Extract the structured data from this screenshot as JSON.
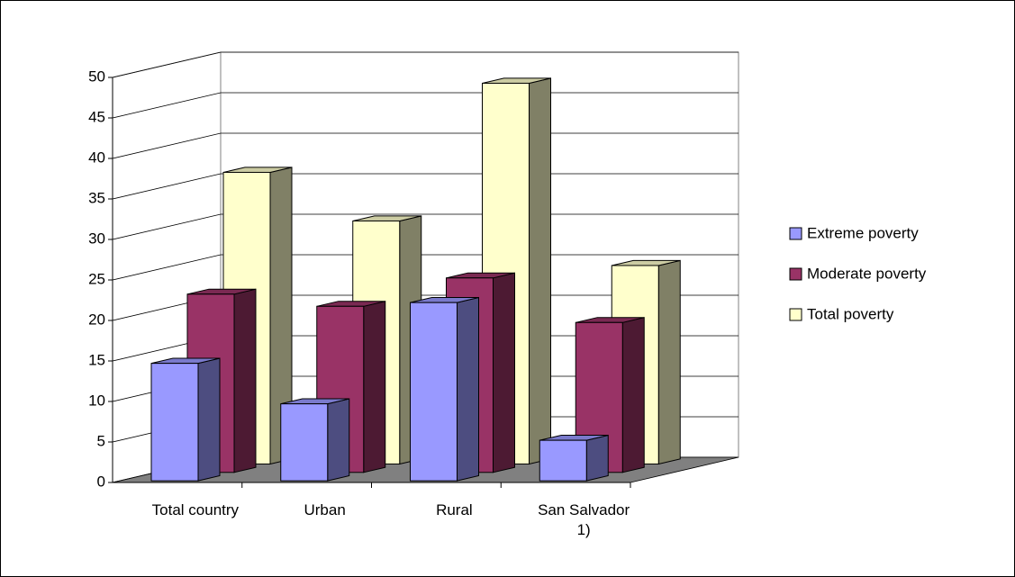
{
  "chart_data": {
    "type": "bar3d",
    "categories": [
      "Total country",
      "Urban",
      "Rural",
      "San Salvador 1)"
    ],
    "series": [
      {
        "name": "Extreme poverty",
        "color": "#9999ff",
        "values": [
          14.5,
          9.5,
          22,
          5
        ]
      },
      {
        "name": "Moderate poverty",
        "color": "#993366",
        "values": [
          22,
          20.5,
          24,
          18.5
        ]
      },
      {
        "name": "Total poverty",
        "color": "#ffffcc",
        "values": [
          36,
          30,
          47,
          24.5
        ]
      }
    ],
    "ylim": [
      0,
      50
    ],
    "yticks": [
      0,
      5,
      10,
      15,
      20,
      25,
      30,
      35,
      40,
      45,
      50
    ],
    "grid": true,
    "legend": "right"
  }
}
